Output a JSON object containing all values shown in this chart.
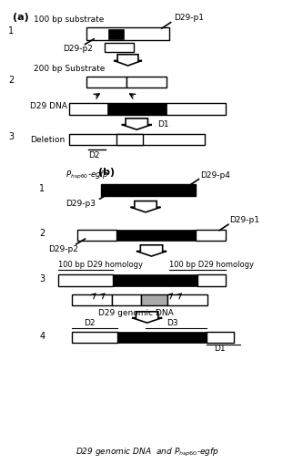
{
  "fig_width": 3.33,
  "fig_height": 5.2,
  "bg_color": "#ffffff",
  "section_a_label": "(a)",
  "section_b_label": "(b)",
  "bottom_label": "D29 genomic DNA  and P$_{hsp60}$-egfp"
}
